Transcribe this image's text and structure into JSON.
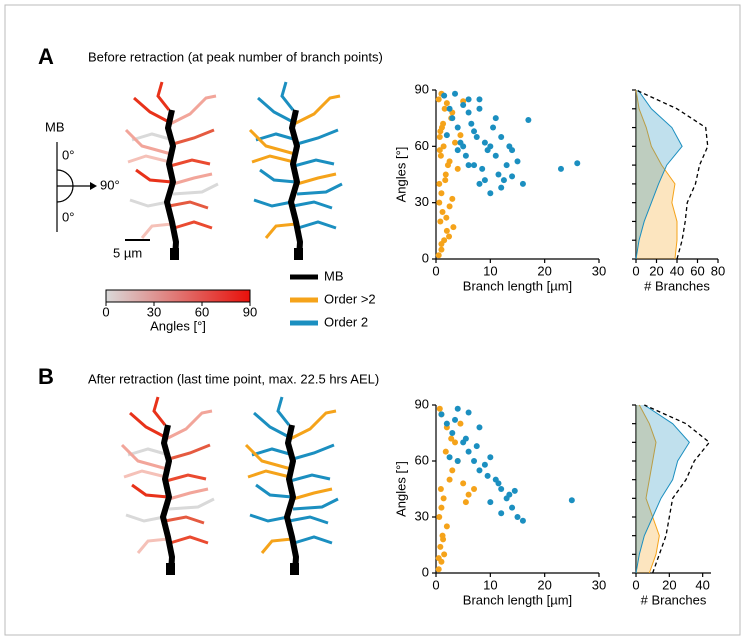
{
  "panels": [
    {
      "label": "A",
      "title": "Before retraction (at peak number of branch points)",
      "scale_bar": "5 µm"
    },
    {
      "label": "B",
      "title": "After retraction (last time point, max. 22.5 hrs AEL)"
    }
  ],
  "angle_key": {
    "axis": "MB",
    "top": "0°",
    "side": "90°",
    "bottom": "0°"
  },
  "colorbar": {
    "lim": [
      0,
      90
    ],
    "ticks": [
      0,
      30,
      60,
      90
    ],
    "label": "Angles [°]",
    "colors": [
      "#d9d9d9",
      "#e8100a"
    ]
  },
  "legend": [
    {
      "name": "MB",
      "color": "#000000"
    },
    {
      "name": "Order >2",
      "color": "#f5a31a"
    },
    {
      "name": "Order 2",
      "color": "#1b8fc0"
    }
  ],
  "chart_data": [
    {
      "type": "scatter",
      "xlabel": "Branch length [µm]",
      "ylabel": "Angles [°]",
      "xlim": [
        0,
        30
      ],
      "ylim": [
        0,
        90
      ],
      "xticks": [
        0,
        10,
        20,
        30
      ],
      "yticks": [
        0,
        30,
        60,
        90
      ],
      "series": [
        {
          "color": "#f5a31a",
          "x": [
            0.5,
            1,
            1.5,
            2,
            0.8,
            1.2,
            2.5,
            3,
            1,
            0.6,
            1.8,
            2.2,
            0.9,
            1.4,
            3.5,
            4,
            0.7,
            1.1,
            2.8,
            1.6,
            0.5,
            1,
            2,
            3,
            1.3,
            0.8,
            4.5,
            5,
            2.5,
            1.7,
            0.6,
            1.9,
            3.2,
            1,
            2.4,
            0.7
          ],
          "values": [
            2,
            5,
            10,
            15,
            20,
            25,
            28,
            32,
            35,
            40,
            45,
            50,
            55,
            60,
            62,
            48,
            65,
            70,
            75,
            80,
            85,
            88,
            83,
            78,
            72,
            68,
            66,
            84,
            52,
            42,
            30,
            22,
            17,
            8,
            12,
            58
          ]
        },
        {
          "color": "#1b8fc0",
          "x": [
            1.5,
            2.5,
            3,
            4,
            5,
            6,
            7,
            8,
            9,
            10,
            11,
            12,
            13,
            14,
            15,
            16,
            17,
            3.5,
            4.5,
            5.5,
            6.5,
            7.5,
            8.5,
            9.5,
            10.5,
            11.5,
            12.5,
            13.5,
            6,
            8,
            10,
            12,
            7,
            9,
            11,
            14,
            5,
            23,
            26,
            2,
            4,
            6,
            8
          ],
          "values": [
            87,
            80,
            75,
            70,
            82,
            78,
            68,
            85,
            62,
            60,
            55,
            65,
            50,
            58,
            52,
            40,
            74,
            88,
            62,
            55,
            72,
            65,
            48,
            58,
            70,
            45,
            42,
            60,
            85,
            80,
            35,
            38,
            50,
            42,
            75,
            44,
            60,
            48,
            51,
            66,
            58,
            50,
            40
          ]
        }
      ]
    },
    {
      "type": "profile",
      "xlabel": "# Branches",
      "xlim": [
        0,
        80
      ],
      "ylim": [
        0,
        90
      ],
      "xticks": [
        0,
        20,
        40,
        60,
        80
      ],
      "yticks": [
        0,
        10,
        20,
        30,
        40,
        50,
        60,
        70,
        80,
        90
      ],
      "y": [
        0,
        10,
        20,
        30,
        40,
        50,
        60,
        70,
        80,
        90
      ],
      "series": [
        {
          "color": "#f5a31a",
          "fill": true,
          "values": [
            38,
            40,
            40,
            35,
            38,
            25,
            15,
            10,
            3,
            0
          ]
        },
        {
          "color": "#1b8fc0",
          "fill": true,
          "values": [
            0,
            3,
            8,
            15,
            22,
            30,
            45,
            35,
            15,
            2
          ]
        },
        {
          "color": "#000000",
          "dashed": true,
          "values": [
            40,
            45,
            48,
            50,
            58,
            62,
            70,
            68,
            40,
            0
          ]
        }
      ]
    },
    {
      "type": "scatter",
      "xlabel": "Branch length [µm]",
      "ylabel": "Angles [°]",
      "xlim": [
        0,
        30
      ],
      "ylim": [
        0,
        90
      ],
      "xticks": [
        0,
        10,
        20,
        30
      ],
      "yticks": [
        0,
        30,
        60,
        90
      ],
      "series": [
        {
          "color": "#f5a31a",
          "x": [
            0.5,
            1,
            1.5,
            0.8,
            1.2,
            2,
            0.6,
            1,
            1.4,
            0.9,
            2.5,
            3,
            4,
            5,
            6,
            3.5,
            2,
            1,
            0.7,
            1.8,
            7,
            5.5,
            4.5,
            2.8,
            1.3,
            0.5
          ],
          "values": [
            2,
            6,
            10,
            14,
            20,
            25,
            30,
            35,
            40,
            45,
            50,
            55,
            60,
            48,
            42,
            70,
            78,
            85,
            88,
            65,
            45,
            38,
            80,
            72,
            18,
            8
          ]
        },
        {
          "color": "#1b8fc0",
          "x": [
            1,
            2,
            3,
            4,
            5,
            6,
            7,
            8,
            9,
            10,
            11,
            12,
            13,
            14,
            15,
            16,
            3.5,
            5.5,
            7.5,
            9.5,
            11.5,
            13.5,
            6,
            8,
            10,
            12,
            4,
            25,
            2.5,
            14.5
          ],
          "values": [
            85,
            80,
            75,
            88,
            70,
            65,
            60,
            55,
            58,
            62,
            50,
            45,
            40,
            35,
            30,
            28,
            82,
            72,
            68,
            52,
            48,
            42,
            86,
            78,
            38,
            32,
            60,
            39,
            62,
            44
          ]
        }
      ]
    },
    {
      "type": "profile",
      "xlabel": "# Branches",
      "xlim": [
        0,
        45
      ],
      "ylim": [
        0,
        90
      ],
      "xticks": [
        0,
        20,
        40
      ],
      "yticks": [
        0,
        10,
        20,
        30,
        40,
        50,
        60,
        70,
        80,
        90
      ],
      "y": [
        0,
        10,
        20,
        30,
        40,
        50,
        60,
        70,
        80,
        90
      ],
      "series": [
        {
          "color": "#f5a31a",
          "fill": true,
          "values": [
            8,
            12,
            14,
            10,
            6,
            8,
            10,
            12,
            8,
            2
          ]
        },
        {
          "color": "#1b8fc0",
          "fill": true,
          "values": [
            0,
            2,
            5,
            10,
            15,
            22,
            25,
            32,
            22,
            5
          ]
        },
        {
          "color": "#000000",
          "dashed": true,
          "values": [
            10,
            14,
            18,
            20,
            22,
            30,
            35,
            44,
            30,
            5
          ]
        }
      ]
    }
  ]
}
